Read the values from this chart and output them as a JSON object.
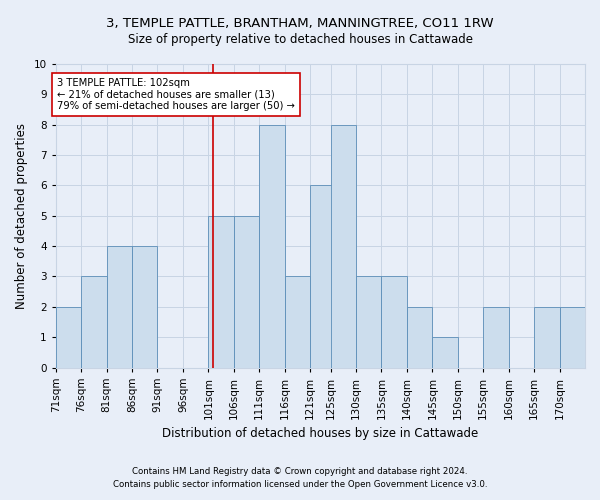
{
  "title1": "3, TEMPLE PATTLE, BRANTHAM, MANNINGTREE, CO11 1RW",
  "title2": "Size of property relative to detached houses in Cattawade",
  "xlabel": "Distribution of detached houses by size in Cattawade",
  "ylabel": "Number of detached properties",
  "annotation_line1": "3 TEMPLE PATTLE: 102sqm",
  "annotation_line2": "← 21% of detached houses are smaller (13)",
  "annotation_line3": "79% of semi-detached houses are larger (50) →",
  "subject_value": 102,
  "categories": [
    "71sqm",
    "76sqm",
    "81sqm",
    "86sqm",
    "91sqm",
    "96sqm",
    "101sqm",
    "106sqm",
    "111sqm",
    "116sqm",
    "121sqm",
    "125sqm",
    "130sqm",
    "135sqm",
    "140sqm",
    "145sqm",
    "150sqm",
    "155sqm",
    "160sqm",
    "165sqm",
    "170sqm"
  ],
  "bin_starts": [
    71,
    76,
    81,
    86,
    91,
    96,
    101,
    106,
    111,
    116,
    121,
    125,
    130,
    135,
    140,
    145,
    150,
    155,
    160,
    165,
    170
  ],
  "bin_width": 5,
  "values": [
    2,
    3,
    4,
    4,
    0,
    0,
    5,
    5,
    8,
    3,
    6,
    8,
    3,
    3,
    2,
    1,
    0,
    2,
    0,
    2,
    2
  ],
  "bar_color": "#ccdded",
  "bar_edge_color": "#5b8db8",
  "vline_x": 102,
  "vline_color": "#cc0000",
  "annotation_box_color": "#ffffff",
  "annotation_box_edge": "#cc0000",
  "grid_color": "#c8d4e4",
  "background_color": "#e8eef8",
  "ylim": [
    0,
    10
  ],
  "yticks": [
    0,
    1,
    2,
    3,
    4,
    5,
    6,
    7,
    8,
    9,
    10
  ],
  "title1_fontsize": 9.5,
  "title2_fontsize": 8.5,
  "ylabel_fontsize": 8.5,
  "xlabel_fontsize": 8.5,
  "tick_fontsize": 7.5,
  "footer1": "Contains HM Land Registry data © Crown copyright and database right 2024.",
  "footer2": "Contains public sector information licensed under the Open Government Licence v3.0.",
  "footer_fontsize": 6.2
}
